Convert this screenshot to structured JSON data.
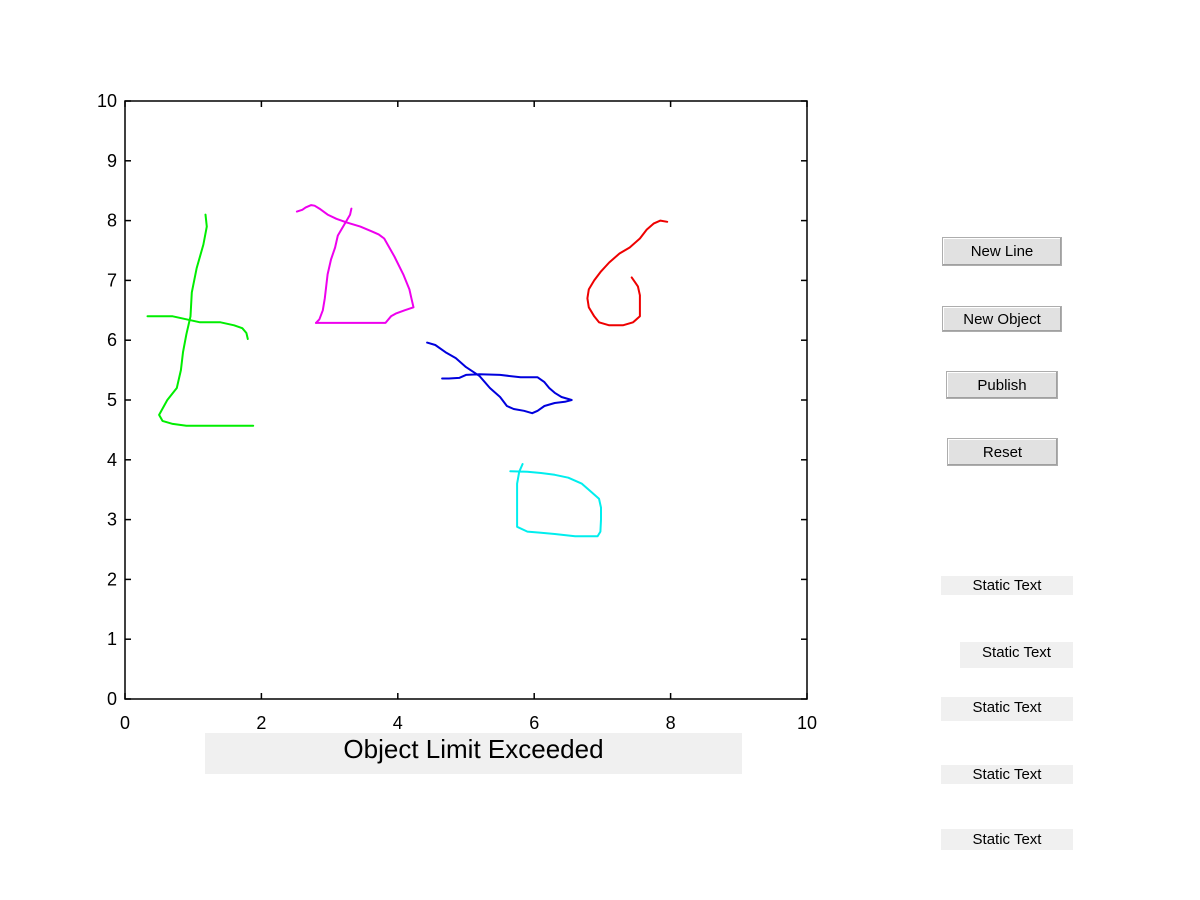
{
  "buttons": {
    "new_line": "New Line",
    "new_object": "New Object",
    "publish": "Publish",
    "reset": "Reset"
  },
  "status_text": "Object Limit Exceeded",
  "static_texts": [
    "Static Text",
    "Static Text",
    "Static Text",
    "Static Text",
    "Static Text"
  ],
  "chart_data": {
    "type": "line",
    "title": "",
    "xlabel": "",
    "ylabel": "",
    "xlim": [
      0,
      10
    ],
    "ylim": [
      0,
      10
    ],
    "x_ticks": [
      0,
      2,
      4,
      6,
      8,
      10
    ],
    "y_ticks": [
      0,
      1,
      2,
      3,
      4,
      5,
      6,
      7,
      8,
      9,
      10
    ],
    "grid": false,
    "legend": "none",
    "series": [
      {
        "color": "#00ee00",
        "points": [
          [
            1.18,
            8.1
          ],
          [
            1.2,
            7.9
          ],
          [
            1.15,
            7.6
          ],
          [
            1.05,
            7.2
          ],
          [
            0.98,
            6.8
          ],
          [
            0.96,
            6.4
          ],
          [
            0.9,
            6.1
          ],
          [
            0.85,
            5.8
          ],
          [
            0.82,
            5.5
          ],
          [
            0.76,
            5.2
          ],
          [
            0.62,
            5.0
          ],
          [
            0.5,
            4.75
          ],
          [
            0.55,
            4.65
          ],
          [
            0.7,
            4.6
          ],
          [
            0.9,
            4.57
          ],
          [
            1.3,
            4.57
          ],
          [
            1.88,
            4.57
          ]
        ]
      },
      {
        "color": "#00ee00",
        "points": [
          [
            0.33,
            6.4
          ],
          [
            0.5,
            6.4
          ],
          [
            0.7,
            6.4
          ],
          [
            0.9,
            6.35
          ],
          [
            1.1,
            6.3
          ],
          [
            1.4,
            6.3
          ],
          [
            1.6,
            6.25
          ],
          [
            1.72,
            6.2
          ],
          [
            1.78,
            6.12
          ],
          [
            1.8,
            6.02
          ]
        ]
      },
      {
        "color": "#ee00ee",
        "points": [
          [
            2.52,
            8.15
          ],
          [
            2.6,
            8.18
          ],
          [
            2.65,
            8.22
          ],
          [
            2.73,
            8.26
          ],
          [
            2.78,
            8.25
          ],
          [
            2.85,
            8.2
          ],
          [
            2.97,
            8.1
          ],
          [
            3.1,
            8.03
          ],
          [
            3.25,
            7.97
          ],
          [
            3.45,
            7.9
          ],
          [
            3.62,
            7.82
          ],
          [
            3.72,
            7.77
          ],
          [
            3.8,
            7.7
          ],
          [
            3.95,
            7.4
          ],
          [
            4.08,
            7.1
          ],
          [
            4.17,
            6.85
          ],
          [
            4.2,
            6.7
          ],
          [
            4.23,
            6.55
          ],
          [
            4.1,
            6.5
          ],
          [
            3.98,
            6.45
          ],
          [
            3.9,
            6.4
          ],
          [
            3.82,
            6.29
          ],
          [
            3.6,
            6.29
          ],
          [
            3.3,
            6.29
          ],
          [
            3.0,
            6.29
          ],
          [
            2.8,
            6.29
          ]
        ]
      },
      {
        "color": "#ee00ee",
        "points": [
          [
            2.8,
            6.29
          ],
          [
            2.85,
            6.35
          ],
          [
            2.9,
            6.5
          ],
          [
            2.93,
            6.7
          ],
          [
            2.95,
            6.9
          ],
          [
            2.97,
            7.1
          ],
          [
            3.02,
            7.35
          ],
          [
            3.08,
            7.55
          ],
          [
            3.12,
            7.75
          ],
          [
            3.25,
            8.0
          ],
          [
            3.3,
            8.1
          ],
          [
            3.32,
            8.2
          ]
        ]
      },
      {
        "color": "#ee0000",
        "points": [
          [
            7.43,
            7.05
          ],
          [
            7.52,
            6.9
          ],
          [
            7.55,
            6.75
          ],
          [
            7.55,
            6.5
          ],
          [
            7.55,
            6.4
          ],
          [
            7.45,
            6.3
          ],
          [
            7.3,
            6.25
          ],
          [
            7.1,
            6.25
          ],
          [
            6.95,
            6.3
          ],
          [
            6.88,
            6.4
          ],
          [
            6.8,
            6.55
          ],
          [
            6.78,
            6.7
          ],
          [
            6.8,
            6.85
          ],
          [
            6.88,
            7.0
          ],
          [
            6.98,
            7.15
          ],
          [
            7.1,
            7.3
          ],
          [
            7.25,
            7.45
          ],
          [
            7.4,
            7.55
          ],
          [
            7.55,
            7.7
          ],
          [
            7.65,
            7.85
          ],
          [
            7.75,
            7.95
          ],
          [
            7.85,
            8.0
          ],
          [
            7.95,
            7.98
          ]
        ]
      },
      {
        "color": "#0000dd",
        "points": [
          [
            4.43,
            5.96
          ],
          [
            4.55,
            5.92
          ],
          [
            4.7,
            5.8
          ],
          [
            4.85,
            5.7
          ],
          [
            5.0,
            5.55
          ],
          [
            5.2,
            5.4
          ],
          [
            5.35,
            5.2
          ],
          [
            5.5,
            5.05
          ],
          [
            5.6,
            4.9
          ],
          [
            5.7,
            4.85
          ],
          [
            5.85,
            4.82
          ],
          [
            5.97,
            4.78
          ],
          [
            6.05,
            4.82
          ],
          [
            6.15,
            4.9
          ],
          [
            6.3,
            4.95
          ],
          [
            6.45,
            4.97
          ],
          [
            6.55,
            5.0
          ],
          [
            6.4,
            5.05
          ],
          [
            6.3,
            5.12
          ],
          [
            6.22,
            5.2
          ],
          [
            6.15,
            5.3
          ],
          [
            6.05,
            5.38
          ],
          [
            5.8,
            5.38
          ],
          [
            5.5,
            5.42
          ],
          [
            5.2,
            5.43
          ],
          [
            5.0,
            5.42
          ],
          [
            4.9,
            5.37
          ],
          [
            4.75,
            5.36
          ],
          [
            4.65,
            5.36
          ]
        ]
      },
      {
        "color": "#00eeee",
        "points": [
          [
            5.83,
            3.93
          ],
          [
            5.78,
            3.8
          ],
          [
            5.75,
            3.6
          ],
          [
            5.75,
            3.3
          ],
          [
            5.75,
            3.0
          ],
          [
            5.75,
            2.88
          ],
          [
            5.9,
            2.8
          ],
          [
            6.1,
            2.78
          ],
          [
            6.3,
            2.76
          ],
          [
            6.6,
            2.72
          ],
          [
            6.93,
            2.72
          ],
          [
            6.97,
            2.8
          ],
          [
            6.98,
            3.0
          ],
          [
            6.98,
            3.2
          ],
          [
            6.95,
            3.35
          ],
          [
            6.85,
            3.45
          ],
          [
            6.7,
            3.6
          ],
          [
            6.5,
            3.7
          ],
          [
            6.3,
            3.75
          ],
          [
            6.1,
            3.78
          ],
          [
            5.9,
            3.8
          ],
          [
            5.65,
            3.81
          ]
        ]
      }
    ]
  }
}
